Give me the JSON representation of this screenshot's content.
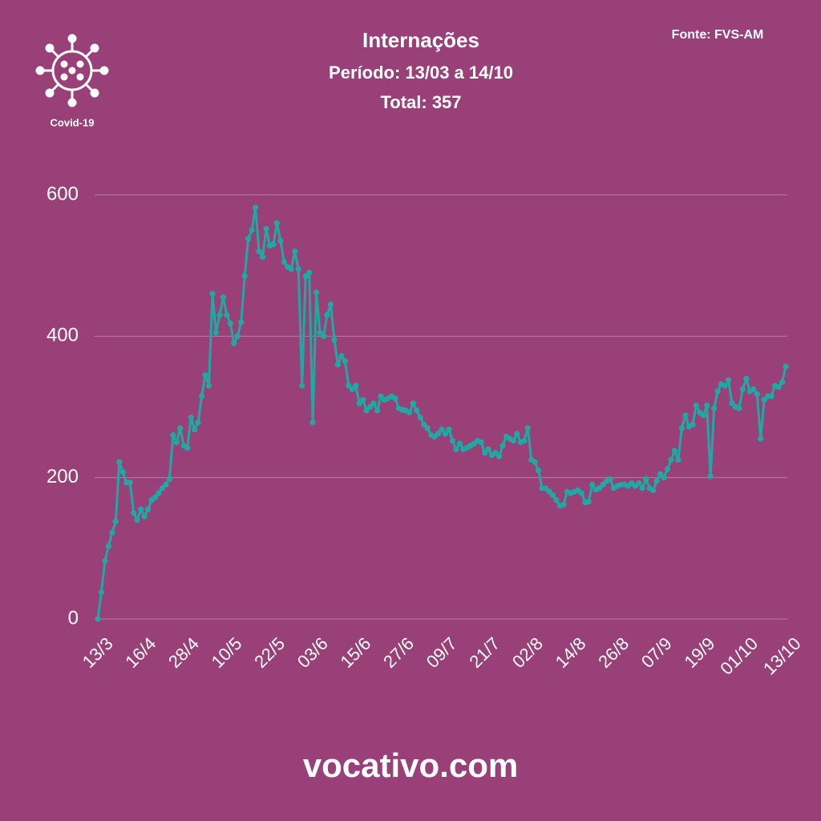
{
  "chart_data": {
    "type": "line",
    "title": "Internações",
    "subtitle": "Período: 13/03 a 14/10",
    "total": "Total: 357",
    "source": "Fonte: FVS-AM",
    "badge": "Covid-19",
    "footer": "vocativo.com",
    "color": "#1fa9a2",
    "grid": true,
    "ylim": [
      0,
      600
    ],
    "yticks": [
      0,
      200,
      400,
      600
    ],
    "categories": [
      "13/3",
      null,
      null,
      null,
      null,
      null,
      null,
      null,
      null,
      null,
      null,
      null,
      "16/4",
      null,
      null,
      null,
      null,
      null,
      null,
      null,
      null,
      null,
      null,
      null,
      "28/4",
      null,
      null,
      null,
      null,
      null,
      null,
      null,
      null,
      null,
      null,
      null,
      "10/5",
      null,
      null,
      null,
      null,
      null,
      null,
      null,
      null,
      null,
      null,
      null,
      "22/5",
      null,
      null,
      null,
      null,
      null,
      null,
      null,
      null,
      null,
      null,
      null,
      "03/6",
      null,
      null,
      null,
      null,
      null,
      null,
      null,
      null,
      null,
      null,
      null,
      "15/6",
      null,
      null,
      null,
      null,
      null,
      null,
      null,
      null,
      null,
      null,
      null,
      "27/6",
      null,
      null,
      null,
      null,
      null,
      null,
      null,
      null,
      null,
      null,
      null,
      "09/7",
      null,
      null,
      null,
      null,
      null,
      null,
      null,
      null,
      null,
      null,
      null,
      "21/7",
      null,
      null,
      null,
      null,
      null,
      null,
      null,
      null,
      null,
      null,
      null,
      "02/8",
      null,
      null,
      null,
      null,
      null,
      null,
      null,
      null,
      null,
      null,
      null,
      "14/8",
      null,
      null,
      null,
      null,
      null,
      null,
      null,
      null,
      null,
      null,
      null,
      "26/8",
      null,
      null,
      null,
      null,
      null,
      null,
      null,
      null,
      null,
      null,
      null,
      "07/9",
      null,
      null,
      null,
      null,
      null,
      null,
      null,
      null,
      null,
      null,
      null,
      "19/9",
      null,
      null,
      null,
      null,
      null,
      null,
      null,
      null,
      null,
      null,
      null,
      "01/10",
      null,
      null,
      null,
      null,
      null,
      null,
      null,
      null,
      null,
      null,
      null,
      "13/10"
    ],
    "values": [
      0,
      38,
      82,
      103,
      122,
      138,
      222,
      208,
      193,
      193,
      150,
      140,
      155,
      145,
      155,
      168,
      172,
      178,
      185,
      190,
      198,
      260,
      250,
      270,
      245,
      242,
      285,
      268,
      278,
      315,
      345,
      330,
      460,
      405,
      430,
      455,
      430,
      418,
      390,
      400,
      420,
      485,
      538,
      550,
      582,
      520,
      512,
      552,
      528,
      530,
      560,
      535,
      505,
      498,
      495,
      520,
      495,
      330,
      485,
      490,
      278,
      462,
      405,
      400,
      430,
      445,
      395,
      360,
      372,
      365,
      330,
      325,
      330,
      305,
      310,
      295,
      300,
      305,
      295,
      315,
      310,
      312,
      315,
      312,
      298,
      296,
      295,
      292,
      305,
      295,
      285,
      275,
      270,
      260,
      258,
      262,
      268,
      262,
      268,
      252,
      240,
      248,
      240,
      242,
      245,
      248,
      252,
      250,
      235,
      240,
      232,
      235,
      230,
      245,
      258,
      255,
      252,
      262,
      250,
      252,
      270,
      225,
      222,
      210,
      185,
      185,
      180,
      175,
      168,
      160,
      162,
      180,
      178,
      180,
      182,
      178,
      165,
      166,
      190,
      183,
      185,
      190,
      195,
      198,
      185,
      188,
      190,
      190,
      188,
      192,
      188,
      192,
      185,
      198,
      185,
      182,
      195,
      205,
      200,
      212,
      225,
      238,
      225,
      270,
      288,
      272,
      275,
      302,
      292,
      288,
      302,
      202,
      298,
      322,
      332,
      330,
      338,
      305,
      300,
      298,
      325,
      340,
      322,
      325,
      318,
      255,
      310,
      315,
      315,
      330,
      328,
      335,
      357
    ]
  }
}
